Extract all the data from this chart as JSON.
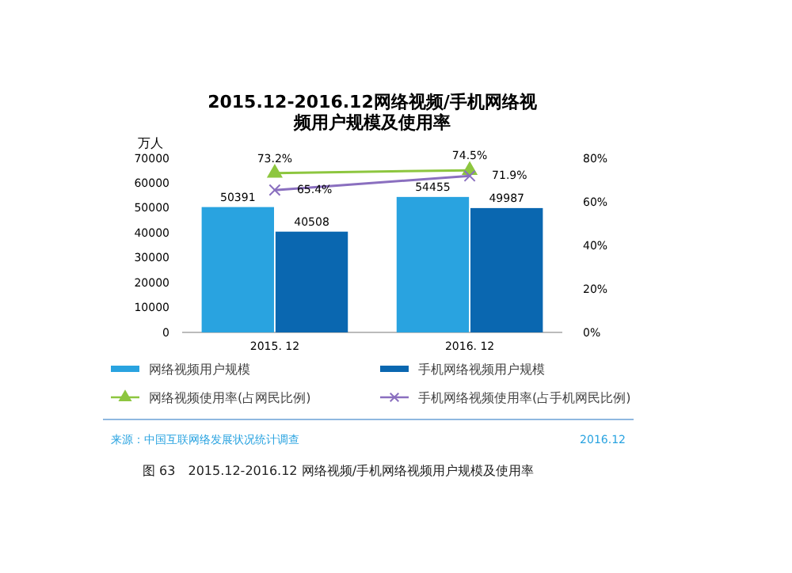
{
  "chart_data": {
    "type": "bar",
    "title": "2015.12-2016.12网络视频/手机网络视频用户规模及使用率",
    "ylabel": "万人",
    "categories": [
      "2015. 12",
      "2016. 12"
    ],
    "series": [
      {
        "name": "网络视频用户规模",
        "color": "#29a3e0",
        "values": [
          50391,
          54455
        ],
        "value_labels": [
          "50391",
          "54455"
        ]
      },
      {
        "name": "手机网络视频用户规模",
        "color": "#0a67b0",
        "values": [
          40508,
          49987
        ],
        "value_labels": [
          "40508",
          "49987"
        ]
      },
      {
        "name": "网络视频使用率(占网民比例)",
        "type": "line",
        "axis": "y2",
        "marker": "triangle",
        "color": "#8dc63f",
        "values": [
          73.2,
          74.5
        ],
        "value_labels": [
          "73.2%",
          "74.5%"
        ]
      },
      {
        "name": "手机网络视频使用率(占手机网民比例)",
        "type": "line",
        "axis": "y2",
        "marker": "cross",
        "color": "#8a6fbf",
        "values": [
          65.4,
          71.9
        ],
        "value_labels": [
          "65.4%",
          "71.9%"
        ]
      }
    ],
    "ylim": [
      0,
      70000
    ],
    "yticks": [
      0,
      10000,
      20000,
      30000,
      40000,
      50000,
      60000,
      70000
    ],
    "y2lim": [
      0,
      80
    ],
    "y2ticks": [
      {
        "value": 0,
        "label": "0%"
      },
      {
        "value": 20,
        "label": "20%"
      },
      {
        "value": 40,
        "label": "40%"
      },
      {
        "value": 60,
        "label": "60%"
      },
      {
        "value": 80,
        "label": "80%"
      }
    ],
    "legend": "bottom",
    "annotations": [
      "来源：中国互联网络发展状况统计调查",
      "2016.12",
      "图 63　2015.12-2016.12 网络视频/手机网络视频用户规模及使用率"
    ]
  }
}
